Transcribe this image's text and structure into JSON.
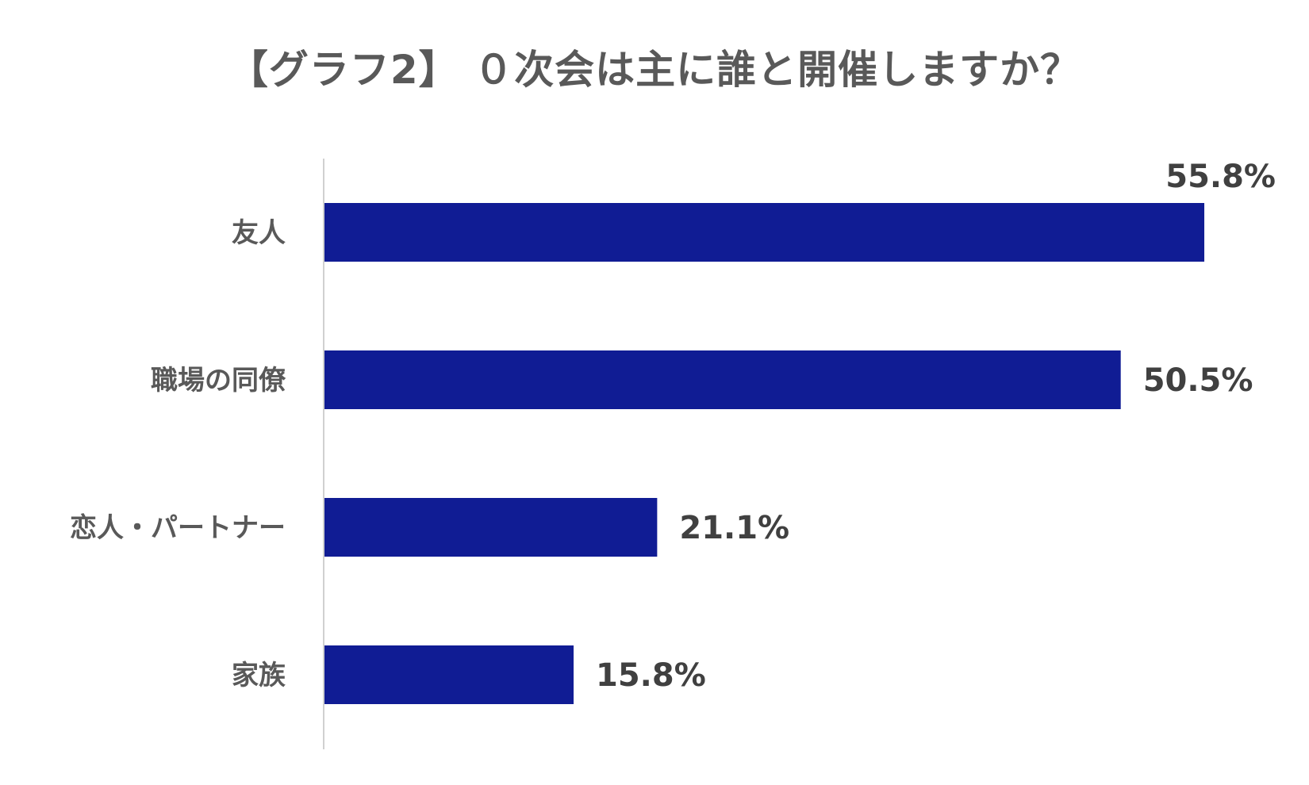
{
  "chart_data": {
    "type": "bar",
    "orientation": "horizontal",
    "title": "【グラフ2】 ０次会は主に誰と開催しますか？",
    "categories": [
      "友人",
      "職場の同僚",
      "恋人・パートナー",
      "家族"
    ],
    "values": [
      55.8,
      50.5,
      21.1,
      15.8
    ],
    "value_labels": [
      "55.8%",
      "50.5%",
      "21.1%",
      "15.8%"
    ],
    "xlabel": "",
    "ylabel": "",
    "xlim": [
      0,
      56
    ],
    "grid": false,
    "legend": "none",
    "colors": {
      "bar": "#101C94",
      "axis": "#D0D0D0",
      "category_text": "#595959",
      "value_text": "#404040",
      "title_text": "#595959"
    }
  }
}
